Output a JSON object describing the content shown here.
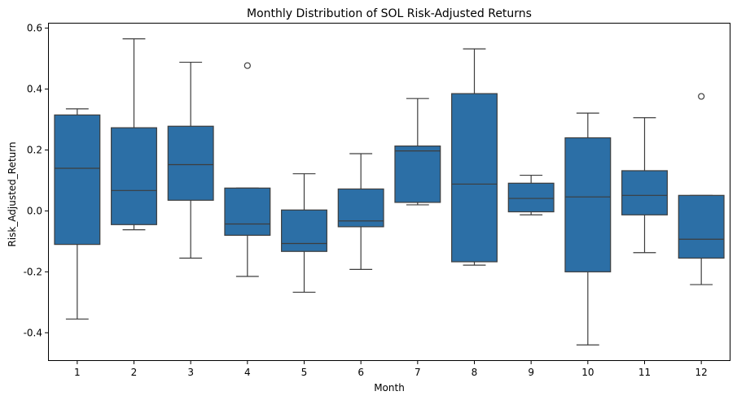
{
  "chart_data": {
    "type": "boxplot",
    "title": "Monthly Distribution of SOL Risk-Adjusted Returns",
    "xlabel": "Month",
    "ylabel": "Risk_Adjusted_Return",
    "ylim": [
      -0.49,
      0.615
    ],
    "yticks": [
      -0.4,
      -0.2,
      0.0,
      0.2,
      0.4,
      0.6
    ],
    "ytick_labels": [
      "-0.4",
      "-0.2",
      "0.0",
      "0.2",
      "0.4",
      "0.6"
    ],
    "categories": [
      "1",
      "2",
      "3",
      "4",
      "5",
      "6",
      "7",
      "8",
      "9",
      "10",
      "11",
      "12"
    ],
    "box_color": "#2c6fa6",
    "line_color": "#3d3d3d",
    "grid": false,
    "boxes": [
      {
        "month": "1",
        "whisker_low": -0.355,
        "q1": -0.11,
        "median": 0.14,
        "q3": 0.315,
        "whisker_high": 0.335,
        "outliers": []
      },
      {
        "month": "2",
        "whisker_low": -0.062,
        "q1": -0.045,
        "median": 0.067,
        "q3": 0.273,
        "whisker_high": 0.565,
        "outliers": []
      },
      {
        "month": "3",
        "whisker_low": -0.155,
        "q1": 0.035,
        "median": 0.152,
        "q3": 0.278,
        "whisker_high": 0.488,
        "outliers": []
      },
      {
        "month": "4",
        "whisker_low": -0.215,
        "q1": -0.08,
        "median": -0.043,
        "q3": 0.075,
        "whisker_high": 0.075,
        "outliers": [
          0.477
        ]
      },
      {
        "month": "5",
        "whisker_low": -0.267,
        "q1": -0.133,
        "median": -0.107,
        "q3": 0.003,
        "whisker_high": 0.122,
        "outliers": []
      },
      {
        "month": "6",
        "whisker_low": -0.192,
        "q1": -0.052,
        "median": -0.033,
        "q3": 0.072,
        "whisker_high": 0.188,
        "outliers": []
      },
      {
        "month": "7",
        "whisker_low": 0.02,
        "q1": 0.028,
        "median": 0.197,
        "q3": 0.213,
        "whisker_high": 0.369,
        "outliers": []
      },
      {
        "month": "8",
        "whisker_low": -0.178,
        "q1": -0.167,
        "median": 0.088,
        "q3": 0.385,
        "whisker_high": 0.532,
        "outliers": []
      },
      {
        "month": "9",
        "whisker_low": -0.013,
        "q1": -0.003,
        "median": 0.041,
        "q3": 0.091,
        "whisker_high": 0.117,
        "outliers": []
      },
      {
        "month": "10",
        "whisker_low": -0.44,
        "q1": -0.2,
        "median": 0.046,
        "q3": 0.24,
        "whisker_high": 0.321,
        "outliers": []
      },
      {
        "month": "11",
        "whisker_low": -0.137,
        "q1": -0.013,
        "median": 0.051,
        "q3": 0.132,
        "whisker_high": 0.306,
        "outliers": []
      },
      {
        "month": "12",
        "whisker_low": -0.242,
        "q1": -0.155,
        "median": -0.093,
        "q3": 0.051,
        "whisker_high": 0.051,
        "outliers": [
          0.376
        ]
      }
    ]
  }
}
